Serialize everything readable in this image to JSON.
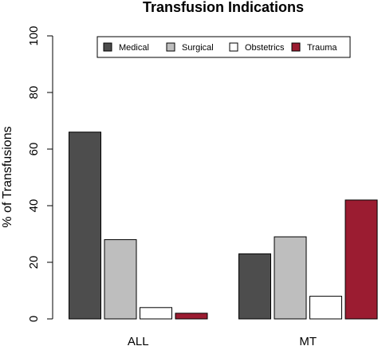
{
  "chart_data": {
    "type": "bar",
    "title": "Transfusion Indications",
    "xlabel": "",
    "ylabel": "% of Transfusions",
    "ylim": [
      0,
      100
    ],
    "yticks": [
      0,
      20,
      40,
      60,
      80,
      100
    ],
    "categories": [
      "ALL",
      "MT"
    ],
    "series": [
      {
        "name": "Medical",
        "color": "#4d4d4d",
        "values": [
          66,
          23
        ]
      },
      {
        "name": "Surgical",
        "color": "#bebebe",
        "values": [
          28,
          29
        ]
      },
      {
        "name": "Obstetrics",
        "color": "#ffffff",
        "values": [
          4,
          8
        ]
      },
      {
        "name": "Trauma",
        "color": "#9b1c31",
        "values": [
          2,
          42
        ]
      }
    ],
    "legend_position": "top",
    "grid": false
  }
}
